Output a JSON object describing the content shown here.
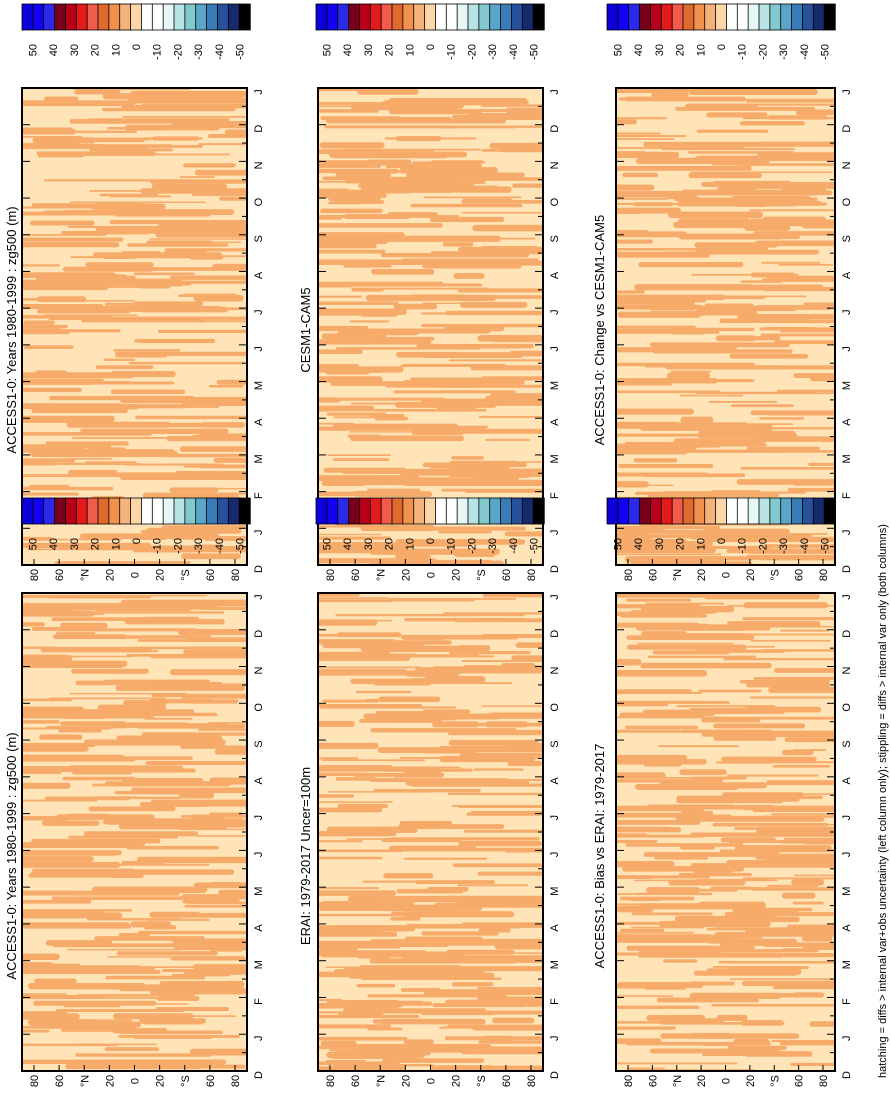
{
  "page": {
    "footnote": "hatching = diffs > internal var+obs uncertainty (left column only); stippling = diffs > internal var only (both columns)"
  },
  "colorbar": {
    "labels": [
      "50",
      "40",
      "30",
      "20",
      "10",
      "0",
      "-10",
      "-20",
      "-30",
      "-40",
      "-50"
    ],
    "colors": [
      "#0b00d9",
      "#1400f2",
      "#2a2ae8",
      "#79001a",
      "#b8001a",
      "#e41a1c",
      "#f25a4a",
      "#e0692e",
      "#f2904e",
      "#f5b27a",
      "#fcd6a6",
      "#ffffff",
      "#ffffff",
      "#e6f7f7",
      "#b6e3e3",
      "#82c8cf",
      "#5aa6c8",
      "#3a7cb8",
      "#27519a",
      "#172a6e",
      "#000000"
    ]
  },
  "chart_data": [
    {
      "type": "heatmap",
      "title": "ACCESS1-0: Years 1980-1999 : zg500 (m)",
      "x_ticks": [
        "D",
        "J",
        "F",
        "M",
        "A",
        "M",
        "J",
        "J",
        "A",
        "S",
        "O",
        "N",
        "D",
        "J"
      ],
      "y_ticks": [
        "80",
        "60",
        "°N",
        "20",
        "0",
        "20",
        "°S",
        "60",
        "80"
      ],
      "fill_colors": [
        "#ffe4b8",
        "#f6ab6a"
      ]
    },
    {
      "type": "heatmap",
      "title": "ACCESS1-0: Years 1980-1999 : zg500 (m)",
      "x_ticks": [
        "D",
        "J",
        "F",
        "M",
        "A",
        "M",
        "J",
        "J",
        "A",
        "S",
        "O",
        "N",
        "D",
        "J"
      ],
      "y_ticks": [
        "80",
        "60",
        "°N",
        "20",
        "0",
        "20",
        "°S",
        "60",
        "80"
      ],
      "fill_colors": [
        "#ffe4b8",
        "#f6ab6a"
      ]
    },
    {
      "type": "heatmap",
      "title": "ERAI: 1979-2017 Uncer=100m",
      "x_ticks": [
        "D",
        "J",
        "F",
        "M",
        "A",
        "M",
        "J",
        "J",
        "A",
        "S",
        "O",
        "N",
        "D",
        "J"
      ],
      "y_ticks": [
        "80",
        "60",
        "°N",
        "20",
        "0",
        "20",
        "°S",
        "60",
        "80"
      ],
      "fill_colors": [
        "#ffe4b8",
        "#f6ab6a"
      ]
    },
    {
      "type": "heatmap",
      "title": "CESM1-CAM5",
      "x_ticks": [
        "D",
        "J",
        "F",
        "M",
        "A",
        "M",
        "J",
        "J",
        "A",
        "S",
        "O",
        "N",
        "D",
        "J"
      ],
      "y_ticks": [
        "80",
        "60",
        "°N",
        "20",
        "0",
        "20",
        "°S",
        "60",
        "80"
      ],
      "fill_colors": [
        "#ffe4b8",
        "#f6ab6a"
      ]
    },
    {
      "type": "heatmap",
      "title": "ACCESS1-0: Bias vs ERAI: 1979-2017",
      "x_ticks": [
        "D",
        "J",
        "F",
        "M",
        "A",
        "M",
        "J",
        "J",
        "A",
        "S",
        "O",
        "N",
        "D",
        "J"
      ],
      "y_ticks": [
        "80",
        "60",
        "°N",
        "20",
        "0",
        "20",
        "°S",
        "60",
        "80"
      ],
      "fill_colors": [
        "#ffe4b8",
        "#f6ab6a"
      ]
    },
    {
      "type": "heatmap",
      "title": "ACCESS1-0: Change vs CESM1-CAM5",
      "x_ticks": [
        "D",
        "J",
        "F",
        "M",
        "A",
        "M",
        "J",
        "J",
        "A",
        "S",
        "O",
        "N",
        "D",
        "J"
      ],
      "y_ticks": [
        "80",
        "60",
        "°N",
        "20",
        "0",
        "20",
        "°S",
        "60",
        "80"
      ],
      "fill_colors": [
        "#ffe4b8",
        "#f6ab6a"
      ]
    }
  ]
}
